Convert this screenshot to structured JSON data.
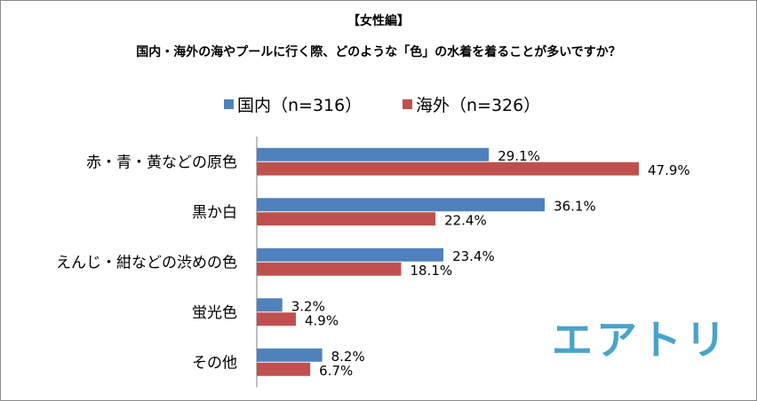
{
  "chart_data": {
    "type": "bar",
    "orientation": "horizontal",
    "subtitle": "【女性編】",
    "title": "国内・海外の海やプールに行く際、どのような「色」の水着を着ることが多いですか？",
    "categories": [
      "赤・青・黄などの原色",
      "黒か白",
      "えんじ・紺などの渋めの色",
      "蛍光色",
      "その他"
    ],
    "series": [
      {
        "name": "国内（n=316）",
        "values": [
          29.1,
          36.1,
          23.4,
          3.2,
          8.2
        ],
        "labels": [
          "29.1%",
          "36.1%",
          "23.4%",
          "3.2%",
          "8.2%"
        ],
        "color": "#4f81bd"
      },
      {
        "name": "海外（n=326）",
        "values": [
          47.9,
          22.4,
          18.1,
          4.9,
          6.7
        ],
        "labels": [
          "47.9%",
          "22.4%",
          "18.1%",
          "4.9%",
          "6.7%"
        ],
        "color": "#c0504d"
      }
    ],
    "xlim": [
      0,
      50
    ],
    "legend_position": "top",
    "grid": false
  },
  "logo": {
    "text": "エアトリ",
    "color": "#48a3c9"
  }
}
